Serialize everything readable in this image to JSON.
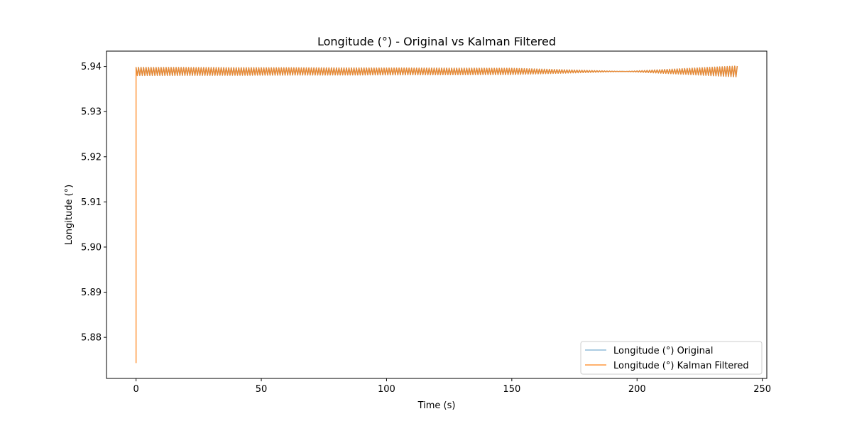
{
  "chart_data": {
    "type": "line",
    "title": "Longitude (°) - Original vs Kalman Filtered",
    "xlabel": "Time (s)",
    "ylabel": "Longitude (°)",
    "xlim": [
      -11.8,
      251.8
    ],
    "ylim": [
      5.8709,
      5.9434
    ],
    "xticks": [
      0,
      50,
      100,
      150,
      200,
      250
    ],
    "xtick_labels": [
      "0",
      "50",
      "100",
      "150",
      "200",
      "250"
    ],
    "yticks": [
      5.88,
      5.89,
      5.9,
      5.91,
      5.92,
      5.93,
      5.94
    ],
    "ytick_labels": [
      "5.88",
      "5.89",
      "5.90",
      "5.91",
      "5.92",
      "5.93",
      "5.94"
    ],
    "grid": false,
    "legend_position": "lower-right",
    "series": [
      {
        "name": "Longitude (°) Original",
        "color": "#1f77b4",
        "alpha": 0.5,
        "time_range": [
          0,
          240
        ],
        "center": 5.9389,
        "oscillation_half_amplitude": [
          [
            0,
            0.0009
          ],
          [
            150,
            0.0007
          ],
          [
            195,
            0.0
          ],
          [
            240,
            0.0012
          ]
        ]
      },
      {
        "name": "Longitude (°) Kalman Filtered",
        "color": "#ff7f0e",
        "alpha": 0.8,
        "time_range": [
          0,
          240
        ],
        "initial_point": [
          0,
          5.8743
        ],
        "center": 5.9389,
        "oscillation_half_amplitude": [
          [
            0,
            0.0009
          ],
          [
            150,
            0.0007
          ],
          [
            195,
            0.0
          ],
          [
            240,
            0.0012
          ]
        ]
      }
    ]
  }
}
